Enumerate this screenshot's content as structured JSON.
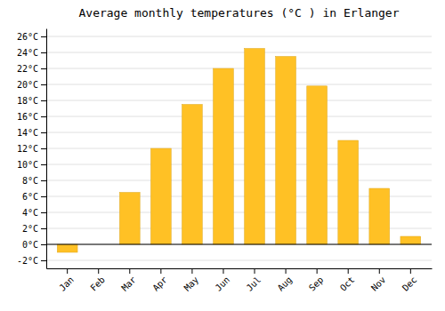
{
  "chart_data": {
    "type": "bar",
    "title": "Average monthly temperatures (°C ) in Erlanger",
    "categories": [
      "Jan",
      "Feb",
      "Mar",
      "Apr",
      "May",
      "Jun",
      "Jul",
      "Aug",
      "Sep",
      "Oct",
      "Nov",
      "Dec"
    ],
    "values": [
      -1.0,
      0.0,
      6.5,
      12.0,
      17.5,
      22.0,
      24.5,
      23.5,
      19.8,
      13.0,
      7.0,
      1.0
    ],
    "color": "#FFC125",
    "ylim": [
      -3,
      27
    ],
    "yticks": [
      {
        "value": -2,
        "label": "-2°C"
      },
      {
        "value": 0,
        "label": "0°C"
      },
      {
        "value": 2,
        "label": "2°C"
      },
      {
        "value": 4,
        "label": "4°C"
      },
      {
        "value": 6,
        "label": "6°C"
      },
      {
        "value": 8,
        "label": "8°C"
      },
      {
        "value": 10,
        "label": "10°C"
      },
      {
        "value": 12,
        "label": "12°C"
      },
      {
        "value": 14,
        "label": "14°C"
      },
      {
        "value": 16,
        "label": "16°C"
      },
      {
        "value": 18,
        "label": "18°C"
      },
      {
        "value": 20,
        "label": "20°C"
      },
      {
        "value": 22,
        "label": "22°C"
      },
      {
        "value": 24,
        "label": "24°C"
      },
      {
        "value": 26,
        "label": "26°C"
      }
    ],
    "grid": true
  }
}
